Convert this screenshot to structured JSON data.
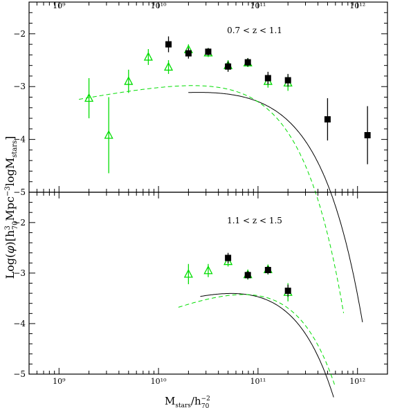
{
  "chart_data": [
    {
      "type": "scatter",
      "panel": "top",
      "annotation": "0.7 < z < 1.1",
      "x_scale": "log",
      "xlim": [
        500000000,
        2000000000000
      ],
      "ylim": [
        -5,
        -1.4
      ],
      "x_tick_labels": [
        "10⁹",
        "10¹⁰",
        "10¹¹",
        "10¹²"
      ],
      "x_tick_values": [
        1000000000,
        10000000000,
        100000000000,
        1000000000000
      ],
      "y_tick_labels": [
        "−2",
        "−3",
        "−4",
        "−5"
      ],
      "y_tick_values": [
        -2,
        -3,
        -4,
        -5
      ],
      "colors": {
        "black_series": "#000000",
        "green_series": "#00dd00"
      },
      "series": [
        {
          "marker": "filled-square",
          "color": "#000000",
          "points": [
            {
              "x": 12600000000,
              "y": -2.2,
              "err": 0.15
            },
            {
              "x": 20000000000,
              "y": -2.37,
              "err": 0.1
            },
            {
              "x": 31600000000,
              "y": -2.34,
              "err": 0.07
            },
            {
              "x": 50000000000,
              "y": -2.62,
              "err": 0.1
            },
            {
              "x": 79000000000,
              "y": -2.54,
              "err": 0.08
            },
            {
              "x": 126000000000,
              "y": -2.84,
              "err": 0.12
            },
            {
              "x": 200000000000,
              "y": -2.88,
              "err": 0.12
            },
            {
              "x": 500000000000,
              "y": -3.62,
              "err": 0.4
            },
            {
              "x": 1260000000000,
              "y": -3.92,
              "err": 0.55
            }
          ]
        },
        {
          "marker": "open-triangle",
          "color": "#00dd00",
          "points": [
            {
              "x": 2000000000,
              "y": -3.22,
              "err": 0.38
            },
            {
              "x": 3160000000,
              "y": -3.92,
              "err": 0.72
            },
            {
              "x": 5000000000,
              "y": -2.9,
              "err": 0.22
            },
            {
              "x": 7900000000,
              "y": -2.44,
              "err": 0.15
            },
            {
              "x": 12600000000,
              "y": -2.63,
              "err": 0.13
            },
            {
              "x": 20000000000,
              "y": -2.3,
              "err": 0.1
            },
            {
              "x": 31600000000,
              "y": -2.36,
              "err": 0.08
            },
            {
              "x": 50000000000,
              "y": -2.6,
              "err": 0.1
            },
            {
              "x": 79000000000,
              "y": -2.55,
              "err": 0.08
            },
            {
              "x": 126000000000,
              "y": -2.9,
              "err": 0.12
            },
            {
              "x": 200000000000,
              "y": -2.93,
              "err": 0.15
            }
          ]
        }
      ],
      "fits": [
        {
          "style": "solid",
          "color": "#000000",
          "model": "schechter",
          "log_phi_star": -2.85,
          "log_m_star": 11.0,
          "alpha": -0.75,
          "log_x_range": [
            10.3,
            12.05
          ]
        },
        {
          "style": "dashed",
          "color": "#00dd00",
          "model": "schechter",
          "log_phi_star": -2.67,
          "log_m_star": 10.8,
          "alpha": -0.65,
          "log_x_range": [
            9.2,
            11.86
          ]
        }
      ]
    },
    {
      "type": "scatter",
      "panel": "bottom",
      "annotation": "1.1 < z < 1.5",
      "x_scale": "log",
      "xlim": [
        500000000,
        2000000000000
      ],
      "ylim": [
        -5,
        -1.4
      ],
      "x_tick_labels": [
        "10⁹",
        "10¹⁰",
        "10¹¹",
        "10¹²"
      ],
      "x_tick_values": [
        1000000000,
        10000000000,
        100000000000,
        1000000000000
      ],
      "y_tick_labels": [
        "−2",
        "−3",
        "−4",
        "−5"
      ],
      "y_tick_values": [
        -2,
        -3,
        -4,
        -5
      ],
      "colors": {
        "black_series": "#000000",
        "green_series": "#00dd00"
      },
      "series": [
        {
          "marker": "filled-square",
          "color": "#000000",
          "points": [
            {
              "x": 50000000000,
              "y": -2.7,
              "err": 0.1
            },
            {
              "x": 79000000000,
              "y": -3.04,
              "err": 0.08
            },
            {
              "x": 126000000000,
              "y": -2.94,
              "err": 0.08
            },
            {
              "x": 200000000000,
              "y": -3.35,
              "err": 0.12
            }
          ]
        },
        {
          "marker": "open-triangle",
          "color": "#00dd00",
          "points": [
            {
              "x": 20000000000,
              "y": -3.02,
              "err": 0.2
            },
            {
              "x": 31600000000,
              "y": -2.95,
              "err": 0.13
            },
            {
              "x": 50000000000,
              "y": -2.77,
              "err": 0.1
            },
            {
              "x": 79000000000,
              "y": -3.03,
              "err": 0.1
            },
            {
              "x": 126000000000,
              "y": -2.93,
              "err": 0.1
            },
            {
              "x": 200000000000,
              "y": -3.38,
              "err": 0.18
            }
          ]
        }
      ],
      "fits": [
        {
          "style": "solid",
          "color": "#000000",
          "model": "schechter",
          "log_phi_star": -3.0,
          "log_m_star": 10.92,
          "alpha": -0.35,
          "log_x_range": [
            10.42,
            11.76
          ]
        },
        {
          "style": "dashed",
          "color": "#00dd00",
          "model": "schechter",
          "log_phi_star": -3.0,
          "log_m_star": 10.95,
          "alpha": -0.2,
          "log_x_range": [
            10.2,
            11.77
          ]
        }
      ]
    }
  ],
  "labels": {
    "y_main": "Log(",
    "y_phi": "φ",
    "y_mid": ")[h",
    "y_h_sup": "3",
    "y_h_sub": "70",
    "y_mpc": "Mpc",
    "y_mpc_sup": "−3",
    "y_log": "logM",
    "y_log_sub": "stars",
    "y_end": "]",
    "x_m": "M",
    "x_m_sub": "stars",
    "x_slash": "/h",
    "x_h_sup": "−2",
    "x_h_sub": "70"
  }
}
